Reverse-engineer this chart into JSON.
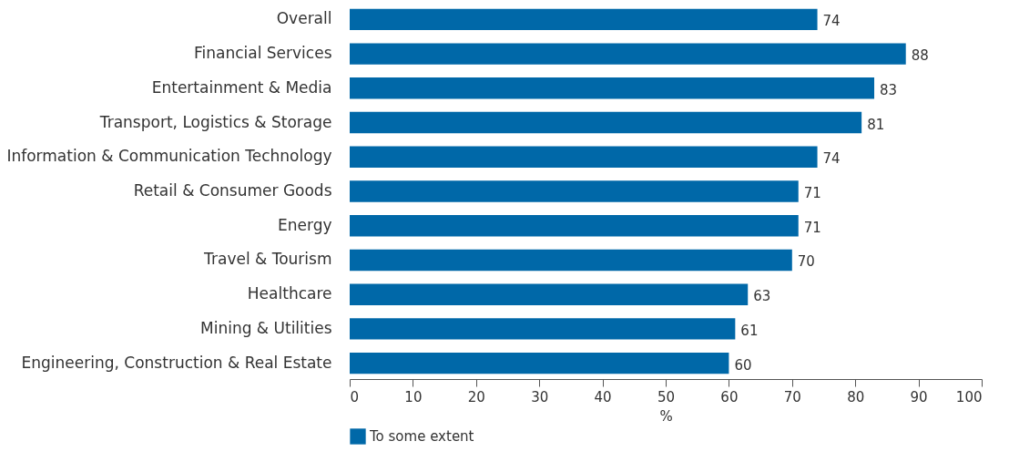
{
  "chart_data": {
    "type": "bar",
    "orientation": "horizontal",
    "categories": [
      "Overall",
      "Financial Services",
      "Entertainment & Media",
      "Transport, Logistics & Storage",
      "Information & Communication Technology",
      "Retail & Consumer Goods",
      "Energy",
      "Travel & Tourism",
      "Healthcare",
      "Mining & Utilities",
      "Engineering, Construction & Real Estate"
    ],
    "series": [
      {
        "name": "To some extent",
        "color": "#0068a8",
        "values": [
          74,
          88,
          83,
          81,
          74,
          71,
          71,
          70,
          63,
          61,
          60
        ]
      }
    ],
    "xlabel": "%",
    "xlim": [
      0,
      100
    ],
    "xticks": [
      0,
      10,
      20,
      30,
      40,
      50,
      60,
      70,
      80,
      90,
      100
    ],
    "data_labels": true,
    "grid": false,
    "legend": "bottom left"
  }
}
